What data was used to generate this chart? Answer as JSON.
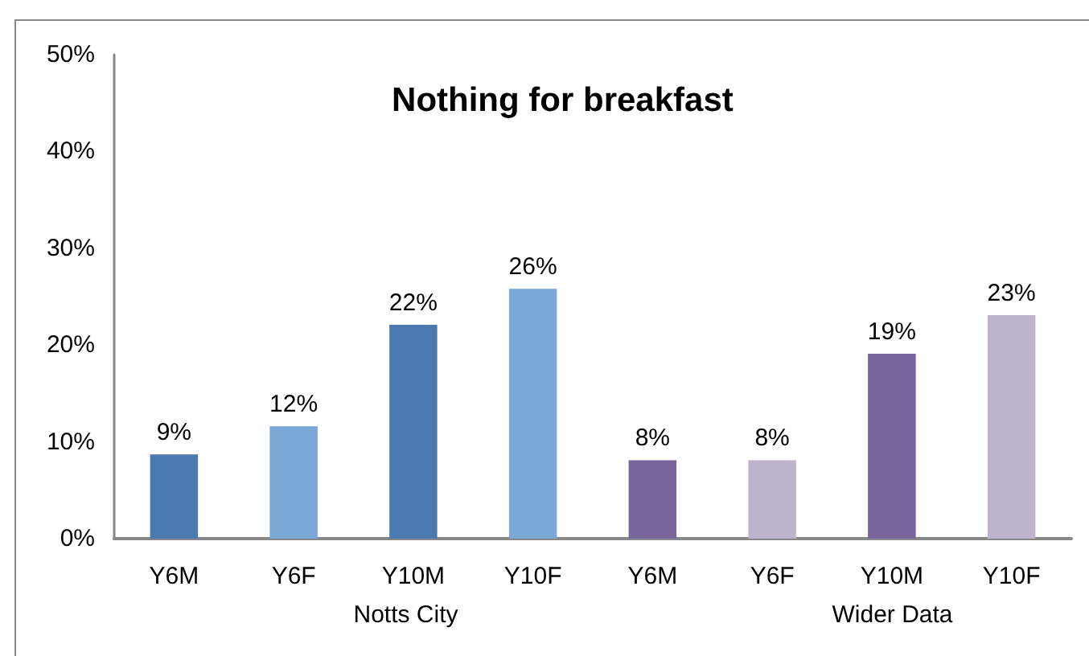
{
  "chart_data": {
    "type": "bar",
    "title": "Nothing for breakfast",
    "categories": [
      "Y6M",
      "Y6F",
      "Y10M",
      "Y10F",
      "Y6M",
      "Y6F",
      "Y10M",
      "Y10F"
    ],
    "values": [
      8.7,
      11.6,
      22.1,
      25.8,
      8.1,
      8.1,
      19.1,
      23.1
    ],
    "colors": [
      "#4a7ab0",
      "#7aa7d6",
      "#4a7ab0",
      "#7aa7d6",
      "#77659b",
      "#bdb3cd",
      "#77659b",
      "#bdb3cd"
    ],
    "value_labels": [
      "9%",
      "12%",
      "22%",
      "26%",
      "8%",
      "8%",
      "19%",
      "23%"
    ],
    "ylim": [
      0,
      50
    ],
    "yticks": [
      {
        "value": 0,
        "label": "0%"
      },
      {
        "value": 10,
        "label": "10%"
      },
      {
        "value": 20,
        "label": "20%"
      },
      {
        "value": 30,
        "label": "30%"
      },
      {
        "value": 40,
        "label": "40%"
      },
      {
        "value": 50,
        "label": "50%"
      }
    ],
    "annotations": [
      "Notts City",
      "Wider Data"
    ]
  }
}
